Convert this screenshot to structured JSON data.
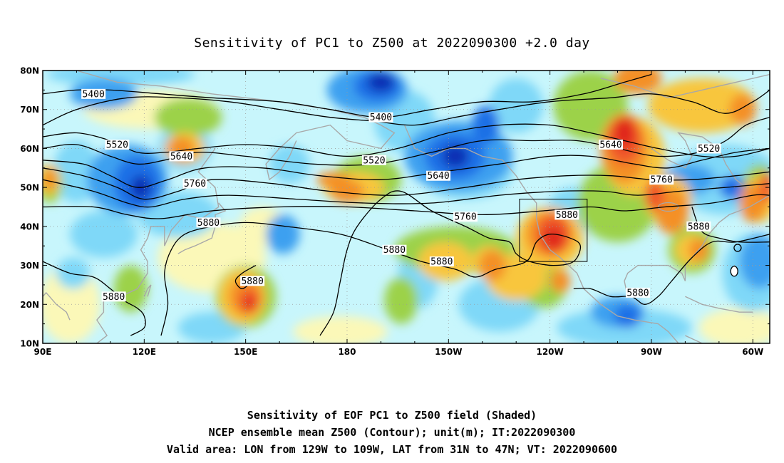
{
  "title": "Sensitivity of PC1 to Z500 at 2022090300 +2.0 day",
  "captions": [
    "Sensitivity of EOF PC1 to Z500 field (Shaded)",
    "NCEP ensemble mean Z500 (Contour); unit(m); IT:2022090300",
    "Valid area: LON from 129W to 109W, LAT from 31N to 47N; VT: 2022090600"
  ],
  "map": {
    "lon_range": [
      90,
      305
    ],
    "lat_range": [
      10,
      80
    ],
    "lat_ticks": [
      "10N",
      "20N",
      "30N",
      "40N",
      "50N",
      "60N",
      "70N",
      "80N"
    ],
    "lon_ticks": [
      "90E",
      "120E",
      "150E",
      "180",
      "150W",
      "120W",
      "90W",
      "60W"
    ],
    "grid": true,
    "colors": {
      "deep_blue": "#0a2fb4",
      "blue": "#1e6fe6",
      "mid_blue": "#3ca0f0",
      "light_blue": "#7fd8f8",
      "pale_cyan": "#c8f6fc",
      "pale_yellow": "#fbf8b8",
      "green": "#9cd24a",
      "yellow_orange": "#f8c63c",
      "orange": "#f49028",
      "red_orange": "#f0582a",
      "red": "#e0261e",
      "coast": "#a8a8a8"
    },
    "valid_box": {
      "lon_w": 129,
      "lon_e": 109,
      "lat_s": 31,
      "lat_n": 47
    },
    "contour_labels": [
      {
        "text": "5400",
        "lon": 105,
        "lat": 74
      },
      {
        "text": "5400",
        "lon": 190,
        "lat": 68
      },
      {
        "text": "5520",
        "lon": 112,
        "lat": 61
      },
      {
        "text": "5520",
        "lon": 188,
        "lat": 57
      },
      {
        "text": "5520",
        "lon": 287,
        "lat": 60
      },
      {
        "text": "5640",
        "lon": 131,
        "lat": 58
      },
      {
        "text": "5640",
        "lon": 207,
        "lat": 53
      },
      {
        "text": "5640",
        "lon": 258,
        "lat": 61
      },
      {
        "text": "5760",
        "lon": 135,
        "lat": 51
      },
      {
        "text": "5760",
        "lon": 215,
        "lat": 42.5
      },
      {
        "text": "5760",
        "lon": 273,
        "lat": 52
      },
      {
        "text": "5880",
        "lon": 139,
        "lat": 41
      },
      {
        "text": "5880",
        "lon": 194,
        "lat": 34
      },
      {
        "text": "5880",
        "lon": 208,
        "lat": 31
      },
      {
        "text": "5880",
        "lon": 245,
        "lat": 43
      },
      {
        "text": "5880",
        "lon": 284,
        "lat": 40
      },
      {
        "text": "5880",
        "lon": 111,
        "lat": 22
      },
      {
        "text": "5880",
        "lon": 152,
        "lat": 26
      },
      {
        "text": "5880",
        "lon": 266,
        "lat": 23
      }
    ]
  }
}
